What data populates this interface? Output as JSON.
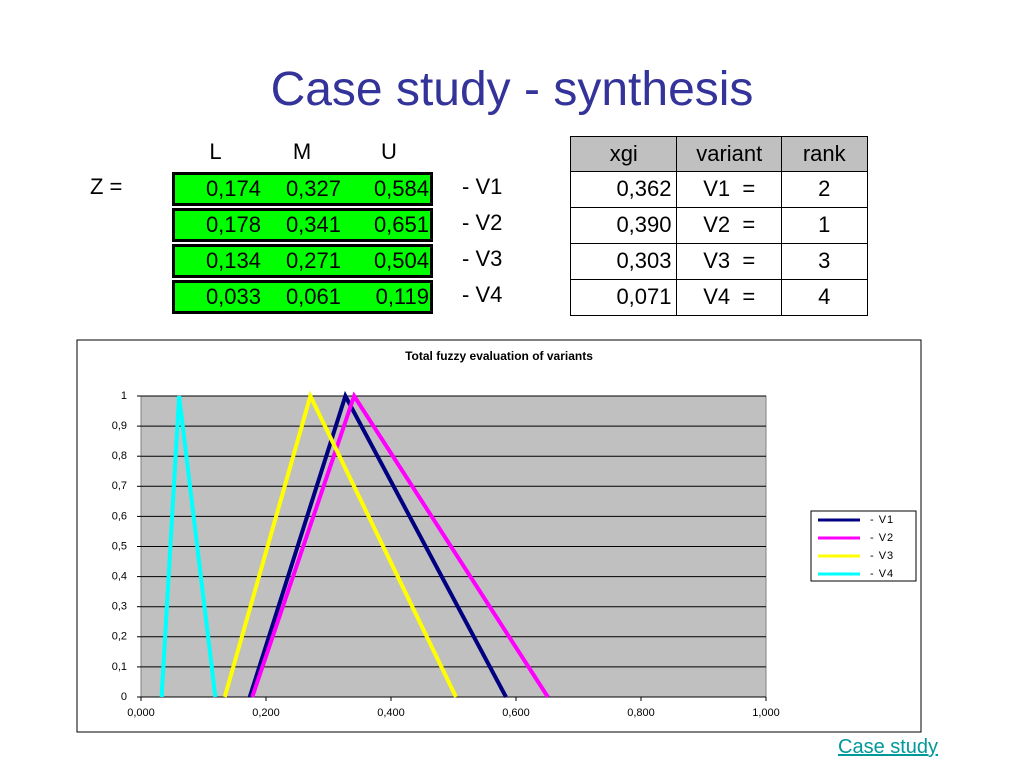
{
  "title": "Case study - synthesis",
  "matrix": {
    "label": "Z =",
    "headers": [
      "L",
      "M",
      "U"
    ],
    "rows": [
      {
        "values": [
          "0,174",
          "0,327",
          "0,584"
        ],
        "label": "- V1"
      },
      {
        "values": [
          "0,178",
          "0,341",
          "0,651"
        ],
        "label": "- V2"
      },
      {
        "values": [
          "0,134",
          "0,271",
          "0,504"
        ],
        "label": "- V3"
      },
      {
        "values": [
          "0,033",
          "0,061",
          "0,119"
        ],
        "label": "- V4"
      }
    ]
  },
  "ranking": {
    "headers": [
      "xgi",
      "variant",
      "rank"
    ],
    "rows": [
      [
        "0,362",
        "V1  =",
        "2"
      ],
      [
        "0,390",
        "V2  =",
        "1"
      ],
      [
        "0,303",
        "V3  =",
        "3"
      ],
      [
        "0,071",
        "V4  =",
        "4"
      ]
    ]
  },
  "chart_data": {
    "type": "line",
    "title": "Total fuzzy evaluation of variants",
    "series": [
      {
        "name": "- V1",
        "color": "#000080",
        "x": [
          0.174,
          0.327,
          0.584
        ],
        "values": [
          0,
          1,
          0
        ]
      },
      {
        "name": "- V2",
        "color": "#ff00ff",
        "x": [
          0.178,
          0.341,
          0.651
        ],
        "values": [
          0,
          1,
          0
        ]
      },
      {
        "name": "- V3",
        "color": "#ffff00",
        "x": [
          0.134,
          0.271,
          0.504
        ],
        "values": [
          0,
          1,
          0
        ]
      },
      {
        "name": "- V4",
        "color": "#00ffff",
        "x": [
          0.033,
          0.061,
          0.119
        ],
        "values": [
          0,
          1,
          0
        ]
      }
    ],
    "xlim": [
      0,
      1
    ],
    "ylim": [
      0,
      1
    ],
    "xticks": [
      {
        "value": 0,
        "label": "0,000"
      },
      {
        "value": 0.2,
        "label": "0,200"
      },
      {
        "value": 0.4,
        "label": "0,400"
      },
      {
        "value": 0.6,
        "label": "0,600"
      },
      {
        "value": 0.8,
        "label": "0,800"
      },
      {
        "value": 1,
        "label": "1,000"
      }
    ],
    "yticks": [
      0,
      {
        "value": 0.1,
        "label": "0,1"
      },
      {
        "value": 0.2,
        "label": "0,2"
      },
      {
        "value": 0.3,
        "label": "0,3"
      },
      {
        "value": 0.4,
        "label": "0,4"
      },
      {
        "value": 0.5,
        "label": "0,5"
      },
      {
        "value": 0.6,
        "label": "0,6"
      },
      {
        "value": 0.7,
        "label": "0,7"
      },
      {
        "value": 0.8,
        "label": "0,8"
      },
      {
        "value": 0.9,
        "label": "0,9"
      },
      1
    ],
    "grid": true,
    "plot_background": "#c0c0c0",
    "legend": "right"
  },
  "link": "Case study"
}
